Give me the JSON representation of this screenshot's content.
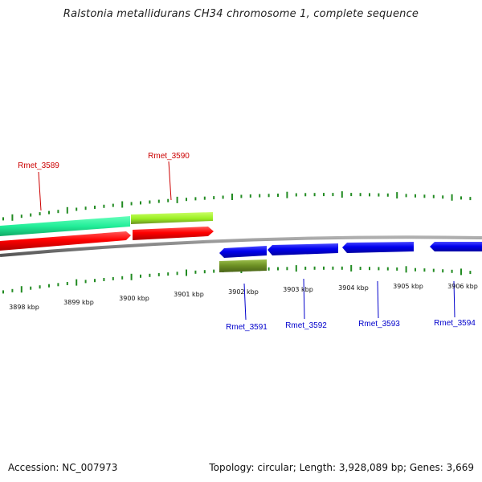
{
  "title": "Ralstonia metallidurans CH34 chromosome 1, complete sequence",
  "footer": {
    "accession": "Accession: NC_007973",
    "stats": "Topology: circular; Length: 3,928,089 bp; Genes: 3,669"
  },
  "colors": {
    "forward_gene": "#ff0000",
    "forward_highlight": "#33ee99",
    "forward_highlight_alt": "#99ee33",
    "reverse_gene": "#0000ee",
    "reverse_other": "#6b8e23",
    "backbone": "#808080",
    "tick": "#228b22",
    "forward_label": "#cc0000",
    "reverse_label": "#0000cc"
  },
  "scale_labels": [
    "3898 kbp",
    "3899 kbp",
    "3900 kbp",
    "3901 kbp",
    "3902 kbp",
    "3903 kbp",
    "3904 kbp",
    "3905 kbp",
    "3906 kbp"
  ],
  "forward_genes": [
    {
      "label": "Rmet_3589"
    },
    {
      "label": "Rmet_3590"
    }
  ],
  "reverse_genes": [
    {
      "label": "Rmet_3591"
    },
    {
      "label": "Rmet_3592"
    },
    {
      "label": "Rmet_3593"
    },
    {
      "label": "Rmet_3594"
    }
  ]
}
